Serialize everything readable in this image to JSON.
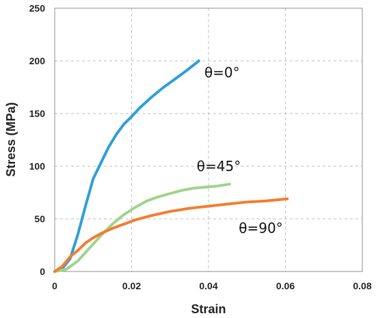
{
  "chart_data": {
    "type": "line",
    "xlabel": "Strain",
    "ylabel": "Stress (MPa)",
    "xlim": [
      0,
      0.08
    ],
    "ylim": [
      0,
      250
    ],
    "x_ticks": [
      0,
      0.02,
      0.04,
      0.06,
      0.08
    ],
    "x_tick_labels": [
      "0",
      "0.02",
      "0.04",
      "0.06",
      "0.08"
    ],
    "y_ticks": [
      0,
      50,
      100,
      150,
      200,
      250
    ],
    "y_tick_labels": [
      "0",
      "50",
      "100",
      "150",
      "200",
      "250"
    ],
    "grid": "dashed, both axes",
    "legend": "none",
    "series": [
      {
        "name": "θ=0°",
        "color": "#2e9fd8",
        "x": [
          0,
          0.002,
          0.004,
          0.006,
          0.008,
          0.01,
          0.012,
          0.014,
          0.016,
          0.018,
          0.02,
          0.022,
          0.025,
          0.028,
          0.031,
          0.034,
          0.0375
        ],
        "y": [
          0,
          3,
          12,
          35,
          62,
          88,
          103,
          118,
          130,
          140,
          147,
          155,
          165,
          174,
          182,
          190,
          200
        ]
      },
      {
        "name": "θ=45°",
        "color": "#9fd38a",
        "x": [
          0,
          0.003,
          0.006,
          0.009,
          0.012,
          0.015,
          0.018,
          0.021,
          0.024,
          0.027,
          0.03,
          0.033,
          0.036,
          0.039,
          0.042,
          0.0455
        ],
        "y": [
          0,
          2,
          10,
          22,
          34,
          45,
          54,
          61,
          67,
          71,
          74,
          77,
          79,
          80,
          81,
          83
        ]
      },
      {
        "name": "θ=90°",
        "color": "#f47c30",
        "x": [
          0,
          0.002,
          0.004,
          0.006,
          0.008,
          0.01,
          0.012,
          0.015,
          0.018,
          0.021,
          0.025,
          0.03,
          0.035,
          0.04,
          0.045,
          0.05,
          0.055,
          0.0605
        ],
        "y": [
          0,
          5,
          14,
          20,
          27,
          32,
          36,
          41,
          45,
          49,
          53,
          57,
          60,
          62,
          64,
          66,
          67,
          69
        ]
      }
    ],
    "annotations": [
      {
        "text": "θ=0°",
        "series": 0,
        "x": 0.0375,
        "y": 200
      },
      {
        "text": "θ=45°",
        "series": 1,
        "x": 0.038,
        "y": 98
      },
      {
        "text": "θ=90°",
        "series": 2,
        "x": 0.05,
        "y": 55
      }
    ]
  }
}
